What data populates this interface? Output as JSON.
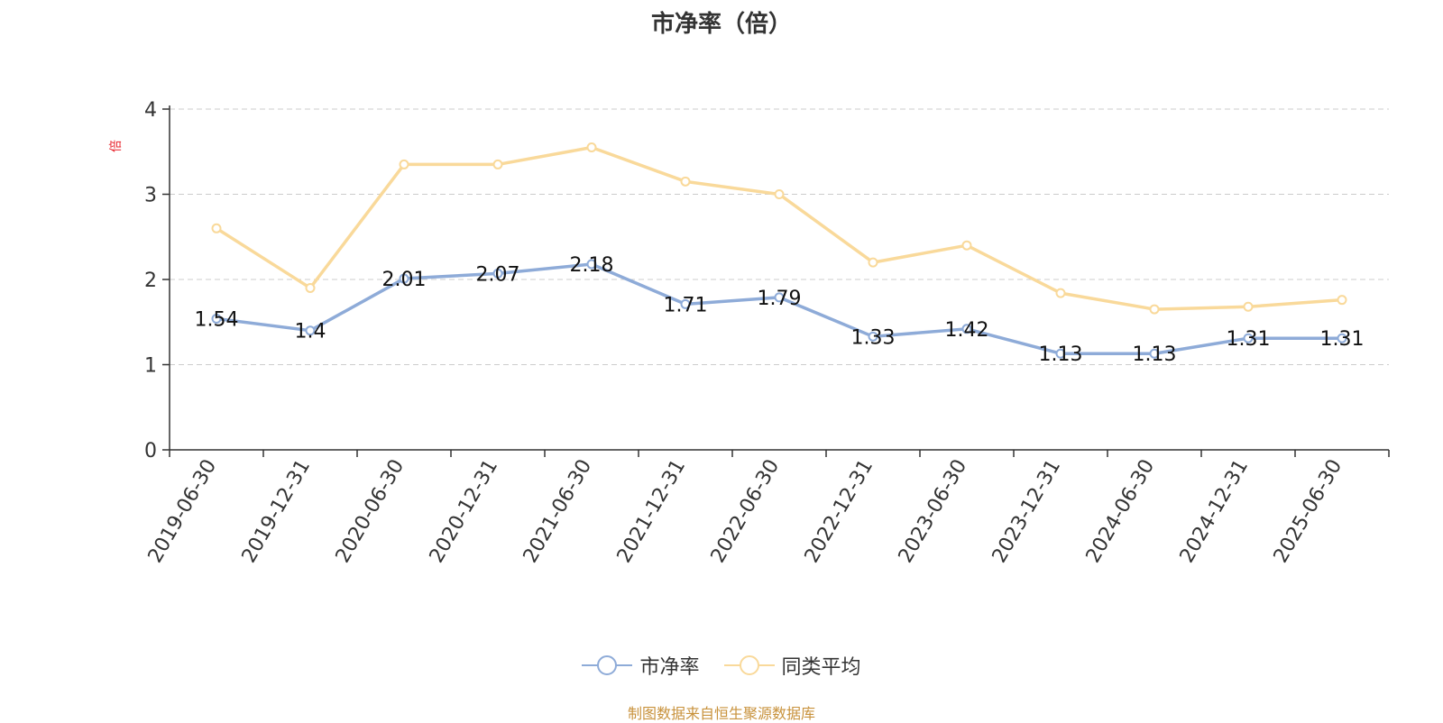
{
  "chart_data": {
    "type": "line",
    "title": "市净率（倍）",
    "ylabel": "倍",
    "xlabel": "",
    "ylim": [
      0,
      4
    ],
    "yticks": [
      0,
      1,
      2,
      3,
      4
    ],
    "grid": true,
    "legend_position": "bottom",
    "categories": [
      "2019-06-30",
      "2019-12-31",
      "2020-06-30",
      "2020-12-31",
      "2021-06-30",
      "2021-12-31",
      "2022-06-30",
      "2022-12-31",
      "2023-06-30",
      "2023-12-31",
      "2024-06-30",
      "2024-12-31",
      "2025-06-30"
    ],
    "series": [
      {
        "name": "市净率",
        "color": "#8eabd8",
        "show_labels": true,
        "values": [
          1.54,
          1.4,
          2.01,
          2.07,
          2.18,
          1.71,
          1.79,
          1.33,
          1.42,
          1.13,
          1.13,
          1.31,
          1.31
        ]
      },
      {
        "name": "同类平均",
        "color": "#f9d99a",
        "show_labels": false,
        "values": [
          2.6,
          1.9,
          3.35,
          3.35,
          3.55,
          3.15,
          3.0,
          2.2,
          2.4,
          1.84,
          1.65,
          1.68,
          1.76
        ]
      }
    ],
    "source": "制图数据来自恒生聚源数据库"
  }
}
